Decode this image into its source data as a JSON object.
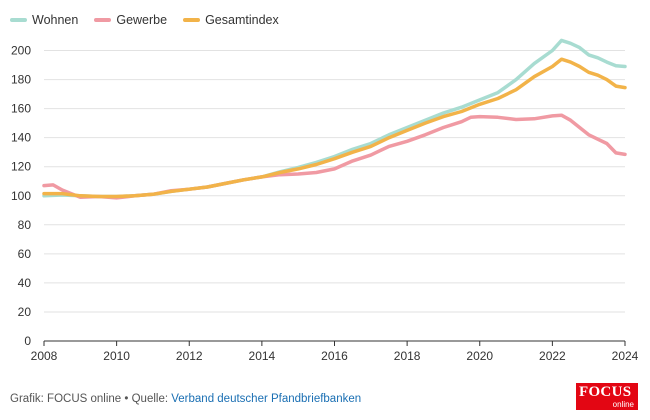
{
  "chart_data": {
    "type": "line",
    "title": "",
    "xlabel": "",
    "ylabel": "",
    "xlim": [
      2008,
      2024
    ],
    "ylim": [
      0,
      210
    ],
    "x_ticks": [
      2008,
      2010,
      2012,
      2014,
      2016,
      2018,
      2020,
      2022,
      2024
    ],
    "y_ticks": [
      0,
      20,
      40,
      60,
      80,
      100,
      120,
      140,
      160,
      180,
      200
    ],
    "grid": "horizontal",
    "legend_position": "top-left",
    "series": [
      {
        "name": "Wohnen",
        "color": "#a8dcd1",
        "points": [
          [
            2008,
            100
          ],
          [
            2008.5,
            100.5
          ],
          [
            2009,
            100
          ],
          [
            2009.5,
            99.5
          ],
          [
            2010,
            99.5
          ],
          [
            2010.5,
            100
          ],
          [
            2011,
            101
          ],
          [
            2011.5,
            103
          ],
          [
            2012,
            104.5
          ],
          [
            2012.5,
            106
          ],
          [
            2013,
            108.5
          ],
          [
            2013.5,
            111
          ],
          [
            2014,
            113
          ],
          [
            2014.5,
            116.5
          ],
          [
            2015,
            119.5
          ],
          [
            2015.5,
            123
          ],
          [
            2016,
            127
          ],
          [
            2016.5,
            132
          ],
          [
            2017,
            136
          ],
          [
            2017.5,
            142
          ],
          [
            2018,
            147
          ],
          [
            2018.5,
            152
          ],
          [
            2019,
            157
          ],
          [
            2019.5,
            161
          ],
          [
            2020,
            166
          ],
          [
            2020.5,
            171
          ],
          [
            2021,
            180
          ],
          [
            2021.5,
            191
          ],
          [
            2022,
            200
          ],
          [
            2022.25,
            207
          ],
          [
            2022.5,
            205
          ],
          [
            2022.75,
            202
          ],
          [
            2023,
            197
          ],
          [
            2023.25,
            195
          ],
          [
            2023.5,
            192
          ],
          [
            2023.75,
            189.5
          ],
          [
            2024,
            189
          ]
        ]
      },
      {
        "name": "Gewerbe",
        "color": "#f09aa3",
        "points": [
          [
            2008,
            107
          ],
          [
            2008.25,
            107.5
          ],
          [
            2008.5,
            104
          ],
          [
            2008.75,
            101.5
          ],
          [
            2009,
            99
          ],
          [
            2009.5,
            99.5
          ],
          [
            2010,
            98.5
          ],
          [
            2010.5,
            100
          ],
          [
            2011,
            101
          ],
          [
            2011.5,
            103.5
          ],
          [
            2012,
            104.5
          ],
          [
            2012.5,
            106
          ],
          [
            2013,
            108.5
          ],
          [
            2013.5,
            111
          ],
          [
            2014,
            113
          ],
          [
            2014.5,
            114.5
          ],
          [
            2015,
            115
          ],
          [
            2015.5,
            116
          ],
          [
            2016,
            118.5
          ],
          [
            2016.5,
            124
          ],
          [
            2017,
            128
          ],
          [
            2017.5,
            134
          ],
          [
            2018,
            137.5
          ],
          [
            2018.5,
            142
          ],
          [
            2019,
            147
          ],
          [
            2019.5,
            151
          ],
          [
            2019.75,
            154
          ],
          [
            2020,
            154.5
          ],
          [
            2020.5,
            154
          ],
          [
            2021,
            152.5
          ],
          [
            2021.5,
            153
          ],
          [
            2022,
            155
          ],
          [
            2022.25,
            155.5
          ],
          [
            2022.5,
            152
          ],
          [
            2022.75,
            147
          ],
          [
            2023,
            142
          ],
          [
            2023.5,
            136
          ],
          [
            2023.75,
            129.5
          ],
          [
            2024,
            128.5
          ]
        ]
      },
      {
        "name": "Gesamtindex",
        "color": "#f2b349",
        "points": [
          [
            2008,
            101.5
          ],
          [
            2008.5,
            101.5
          ],
          [
            2009,
            100
          ],
          [
            2009.5,
            99.5
          ],
          [
            2010,
            99.5
          ],
          [
            2010.5,
            100
          ],
          [
            2011,
            101
          ],
          [
            2011.5,
            103
          ],
          [
            2012,
            104.5
          ],
          [
            2012.5,
            106
          ],
          [
            2013,
            108.5
          ],
          [
            2013.5,
            111
          ],
          [
            2014,
            113
          ],
          [
            2014.5,
            116
          ],
          [
            2015,
            118.5
          ],
          [
            2015.5,
            121.5
          ],
          [
            2016,
            125.5
          ],
          [
            2016.5,
            130
          ],
          [
            2017,
            134
          ],
          [
            2017.5,
            140
          ],
          [
            2018,
            145
          ],
          [
            2018.5,
            150
          ],
          [
            2019,
            154.5
          ],
          [
            2019.5,
            158
          ],
          [
            2020,
            163
          ],
          [
            2020.5,
            167
          ],
          [
            2021,
            173
          ],
          [
            2021.5,
            182
          ],
          [
            2022,
            189
          ],
          [
            2022.25,
            194
          ],
          [
            2022.5,
            192
          ],
          [
            2022.75,
            189
          ],
          [
            2023,
            185
          ],
          [
            2023.25,
            183
          ],
          [
            2023.5,
            180
          ],
          [
            2023.75,
            175.5
          ],
          [
            2024,
            174.5
          ]
        ]
      }
    ]
  },
  "footer": {
    "prefix": "Grafik: FOCUS online • Quelle: ",
    "source_link": "Verband deutscher Pfandbriefbanken"
  },
  "logo": {
    "main": "FOCUS",
    "sub": "online",
    "color": "#e30613"
  }
}
